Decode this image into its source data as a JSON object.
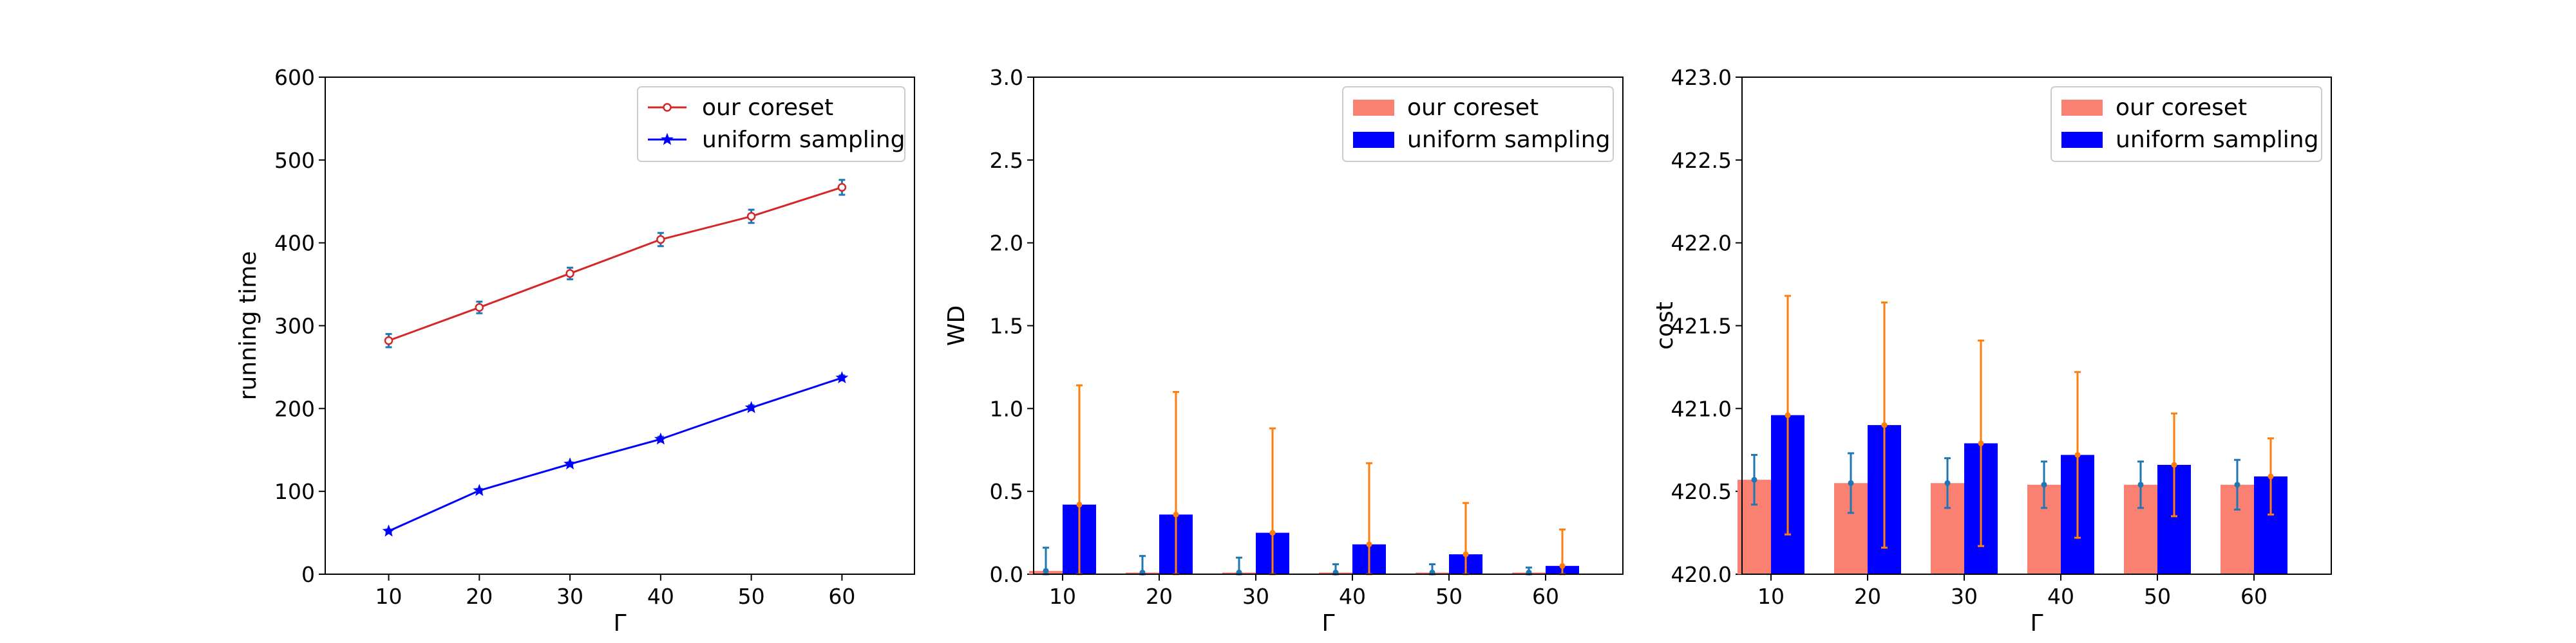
{
  "chart_data": [
    {
      "type": "line",
      "xlabel": "Γ",
      "ylabel": "running time",
      "x": [
        10,
        20,
        30,
        40,
        50,
        60
      ],
      "xlim": [
        3,
        68
      ],
      "ylim": [
        0,
        600
      ],
      "xticks": [
        10,
        20,
        30,
        40,
        50,
        60
      ],
      "yticks": [
        0,
        100,
        200,
        300,
        400,
        500,
        600
      ],
      "grid": false,
      "legend_position": "upper-right",
      "series": [
        {
          "name": "our coreset",
          "values": [
            282,
            322,
            363,
            404,
            432,
            467
          ],
          "errors": [
            8,
            7,
            7,
            8,
            8,
            9
          ],
          "color": "#d62728",
          "marker": "circle"
        },
        {
          "name": "uniform sampling",
          "values": [
            52,
            101,
            133,
            163,
            201,
            237
          ],
          "errors": [
            2,
            2,
            2,
            3,
            3,
            3
          ],
          "color": "#0000ff",
          "marker": "star"
        }
      ],
      "error_bar_color": "#1f77b4"
    },
    {
      "type": "bar",
      "xlabel": "Γ",
      "ylabel": "WD",
      "categories": [
        "10",
        "20",
        "30",
        "40",
        "50",
        "60"
      ],
      "x": [
        10,
        20,
        30,
        40,
        50,
        60
      ],
      "xlim": [
        7,
        68
      ],
      "ylim": [
        0,
        3.0
      ],
      "yticks": [
        0.0,
        0.5,
        1.0,
        1.5,
        2.0,
        2.5,
        3.0
      ],
      "grid": false,
      "legend_position": "upper-right",
      "series": [
        {
          "name": "our coreset",
          "values": [
            0.02,
            0.01,
            0.01,
            0.01,
            0.01,
            0.01
          ],
          "errors": [
            0.14,
            0.1,
            0.09,
            0.05,
            0.05,
            0.03
          ],
          "color": "#fa8072",
          "error_color": "#1f77b4"
        },
        {
          "name": "uniform sampling",
          "values": [
            0.42,
            0.36,
            0.25,
            0.18,
            0.12,
            0.05
          ],
          "errors": [
            0.72,
            0.74,
            0.63,
            0.49,
            0.31,
            0.22
          ],
          "color": "#0000ff",
          "error_color": "#ff7f0e"
        }
      ]
    },
    {
      "type": "bar",
      "xlabel": "Γ",
      "ylabel": "cost",
      "categories": [
        "10",
        "20",
        "30",
        "40",
        "50",
        "60"
      ],
      "x": [
        10,
        20,
        30,
        40,
        50,
        60
      ],
      "xlim": [
        7,
        68
      ],
      "ylim": [
        420.0,
        423.0
      ],
      "yticks": [
        420.0,
        420.5,
        421.0,
        421.5,
        422.0,
        422.5,
        423.0
      ],
      "grid": false,
      "legend_position": "upper-right",
      "series": [
        {
          "name": "our coreset",
          "values": [
            420.57,
            420.55,
            420.55,
            420.54,
            420.54,
            420.54
          ],
          "errors": [
            0.15,
            0.18,
            0.15,
            0.14,
            0.14,
            0.15
          ],
          "color": "#fa8072",
          "error_color": "#1f77b4"
        },
        {
          "name": "uniform sampling",
          "values": [
            420.96,
            420.9,
            420.79,
            420.72,
            420.66,
            420.59
          ],
          "errors": [
            0.72,
            0.74,
            0.62,
            0.5,
            0.31,
            0.23
          ],
          "color": "#0000ff",
          "error_color": "#ff7f0e"
        }
      ]
    }
  ]
}
